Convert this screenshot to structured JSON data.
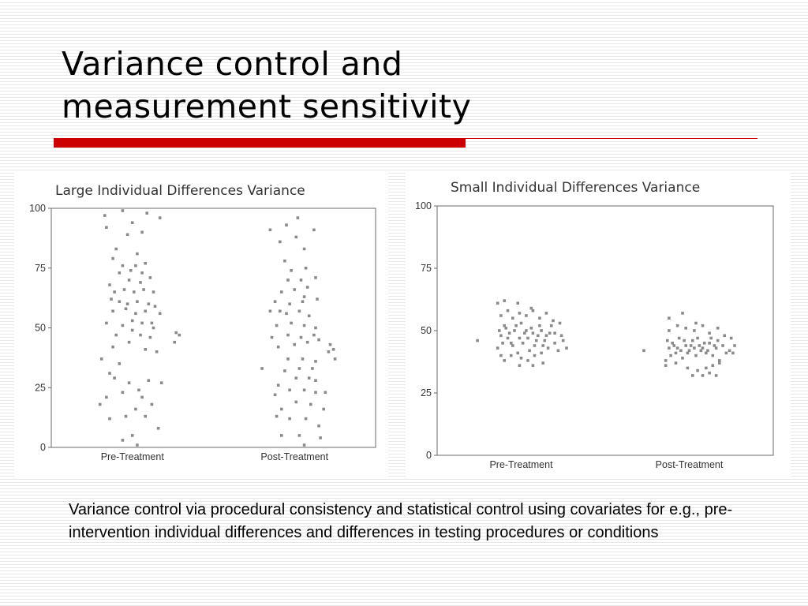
{
  "slide": {
    "title_lines": [
      "Variance control and",
      "measurement sensitivity"
    ],
    "accent_color": "#cc0000",
    "caption": "Variance control via procedural consistency and statistical control using covariates for e.g., pre-intervention individual differences and differences in testing procedures or conditions"
  },
  "chart_data": [
    {
      "type": "scatter",
      "title": "Large Individual Differences Variance",
      "xlabel": "",
      "ylabel": "",
      "categories": [
        "Pre-Treatment",
        "Post-Treatment"
      ],
      "ylim": [
        0,
        100
      ],
      "yticks": [
        0,
        25,
        50,
        75,
        100
      ],
      "grid": false,
      "point_color": "#8a8a8a",
      "series": [
        {
          "values": [
            [
              -0.19,
              37
            ],
            [
              -0.08,
              35
            ],
            [
              -0.14,
              31
            ],
            [
              -0.11,
              29
            ],
            [
              -0.02,
              27
            ],
            [
              0.04,
              24
            ],
            [
              0.1,
              28
            ],
            [
              0.18,
              27
            ],
            [
              -0.16,
              21
            ],
            [
              -0.06,
              23
            ],
            [
              0.06,
              21
            ],
            [
              0.12,
              18
            ],
            [
              -0.2,
              18
            ],
            [
              0.02,
              16
            ],
            [
              -0.14,
              12
            ],
            [
              -0.04,
              13
            ],
            [
              0.08,
              13
            ],
            [
              0.16,
              8
            ],
            [
              0.0,
              5
            ],
            [
              -0.06,
              3
            ],
            [
              0.03,
              1
            ],
            [
              -0.12,
              42
            ],
            [
              -0.02,
              44
            ],
            [
              0.08,
              41
            ],
            [
              0.15,
              40
            ],
            [
              0.26,
              44
            ],
            [
              0.27,
              48
            ],
            [
              0.29,
              47
            ],
            [
              -0.1,
              47
            ],
            [
              0.0,
              49
            ],
            [
              0.05,
              47
            ],
            [
              0.11,
              46
            ],
            [
              -0.16,
              52
            ],
            [
              -0.06,
              51
            ],
            [
              0.0,
              53
            ],
            [
              0.06,
              52
            ],
            [
              0.12,
              52
            ],
            [
              -0.12,
              57
            ],
            [
              -0.04,
              58
            ],
            [
              0.02,
              56
            ],
            [
              0.08,
              57
            ],
            [
              -0.13,
              62
            ],
            [
              -0.08,
              61
            ],
            [
              -0.03,
              60
            ],
            [
              0.03,
              61
            ],
            [
              0.1,
              60
            ],
            [
              -0.11,
              65
            ],
            [
              -0.05,
              66
            ],
            [
              0.01,
              65
            ],
            [
              0.07,
              66
            ],
            [
              0.13,
              65
            ],
            [
              -0.14,
              68
            ],
            [
              -0.02,
              70
            ],
            [
              0.05,
              69
            ],
            [
              -0.08,
              73
            ],
            [
              -0.01,
              74
            ],
            [
              0.06,
              73
            ],
            [
              0.11,
              71
            ],
            [
              -0.06,
              76
            ],
            [
              0.02,
              76
            ],
            [
              0.08,
              77
            ],
            [
              -0.12,
              79
            ],
            [
              0.03,
              81
            ],
            [
              -0.1,
              83
            ],
            [
              -0.03,
              89
            ],
            [
              0.06,
              90
            ],
            [
              -0.16,
              92
            ],
            [
              0.0,
              94
            ],
            [
              -0.17,
              97
            ],
            [
              -0.06,
              99
            ],
            [
              0.09,
              98
            ],
            [
              0.17,
              96
            ],
            [
              0.14,
              59
            ],
            [
              0.17,
              56
            ],
            [
              0.13,
              50
            ]
          ]
        },
        {
          "values": [
            [
              -0.2,
              33
            ],
            [
              -0.1,
              26
            ],
            [
              -0.03,
              24
            ],
            [
              0.06,
              24
            ],
            [
              0.13,
              23
            ],
            [
              0.19,
              23
            ],
            [
              0.01,
              29
            ],
            [
              0.09,
              29
            ],
            [
              0.13,
              28
            ],
            [
              -0.06,
              32
            ],
            [
              0.03,
              33
            ],
            [
              0.11,
              33
            ],
            [
              -0.12,
              22
            ],
            [
              -0.08,
              16
            ],
            [
              0.01,
              19
            ],
            [
              0.1,
              18
            ],
            [
              0.18,
              16
            ],
            [
              -0.11,
              13
            ],
            [
              -0.03,
              12
            ],
            [
              0.07,
              12
            ],
            [
              0.15,
              9
            ],
            [
              -0.08,
              5
            ],
            [
              0.03,
              5
            ],
            [
              0.16,
              4
            ],
            [
              0.06,
              1
            ],
            [
              -0.04,
              37
            ],
            [
              0.05,
              37
            ],
            [
              0.13,
              36
            ],
            [
              -0.1,
              42
            ],
            [
              0.0,
              43
            ],
            [
              0.08,
              44
            ],
            [
              0.15,
              45
            ],
            [
              0.22,
              43
            ],
            [
              0.24,
              41
            ],
            [
              0.21,
              40
            ],
            [
              0.25,
              37
            ],
            [
              -0.14,
              46
            ],
            [
              -0.04,
              47
            ],
            [
              0.04,
              46
            ],
            [
              0.12,
              47
            ],
            [
              -0.11,
              51
            ],
            [
              -0.02,
              52
            ],
            [
              0.06,
              51
            ],
            [
              0.13,
              50
            ],
            [
              -0.15,
              57
            ],
            [
              -0.05,
              56
            ],
            [
              0.03,
              57
            ],
            [
              0.09,
              55
            ],
            [
              -0.12,
              61
            ],
            [
              -0.03,
              60
            ],
            [
              0.05,
              61
            ],
            [
              0.14,
              62
            ],
            [
              -0.08,
              65
            ],
            [
              0.0,
              66
            ],
            [
              0.08,
              67
            ],
            [
              -0.04,
              70
            ],
            [
              0.04,
              70
            ],
            [
              0.13,
              71
            ],
            [
              -0.02,
              74
            ],
            [
              0.07,
              75
            ],
            [
              -0.06,
              78
            ],
            [
              0.06,
              83
            ],
            [
              -0.09,
              86
            ],
            [
              0.01,
              88
            ],
            [
              -0.15,
              91
            ],
            [
              -0.05,
              93
            ],
            [
              0.12,
              91
            ],
            [
              0.02,
              96
            ],
            [
              0.06,
              63
            ],
            [
              -0.09,
              57
            ]
          ]
        }
      ]
    },
    {
      "type": "scatter",
      "title": "Small Individual Differences Variance",
      "xlabel": "",
      "ylabel": "",
      "categories": [
        "Pre-Treatment",
        "Post-Treatment"
      ],
      "ylim": [
        0,
        100
      ],
      "yticks": [
        0,
        25,
        50,
        75,
        100
      ],
      "grid": false,
      "point_color": "#8a8a8a",
      "series": [
        {
          "values": [
            [
              -0.26,
              46
            ],
            [
              -0.14,
              43
            ],
            [
              -0.12,
              48
            ],
            [
              -0.1,
              52
            ],
            [
              -0.08,
              47
            ],
            [
              -0.06,
              45
            ],
            [
              -0.04,
              50
            ],
            [
              -0.02,
              41
            ],
            [
              0.0,
              53
            ],
            [
              0.02,
              49
            ],
            [
              0.04,
              47
            ],
            [
              0.06,
              51
            ],
            [
              0.08,
              44
            ],
            [
              0.1,
              48
            ],
            [
              0.12,
              50
            ],
            [
              0.14,
              46
            ],
            [
              0.16,
              43
            ],
            [
              0.18,
              52
            ],
            [
              0.2,
              45
            ],
            [
              0.22,
              42
            ],
            [
              -0.13,
              50
            ],
            [
              -0.11,
              45
            ],
            [
              -0.09,
              51
            ],
            [
              -0.07,
              49
            ],
            [
              -0.05,
              44
            ],
            [
              -0.03,
              52
            ],
            [
              -0.01,
              47
            ],
            [
              0.01,
              45
            ],
            [
              0.03,
              50
            ],
            [
              0.05,
              42
            ],
            [
              0.07,
              49
            ],
            [
              0.09,
              46
            ],
            [
              0.11,
              52
            ],
            [
              0.13,
              44
            ],
            [
              0.15,
              48
            ],
            [
              0.17,
              49
            ],
            [
              -0.12,
              56
            ],
            [
              -0.08,
              58
            ],
            [
              -0.05,
              55
            ],
            [
              -0.01,
              57
            ],
            [
              0.03,
              56
            ],
            [
              0.07,
              58
            ],
            [
              0.11,
              55
            ],
            [
              0.15,
              57
            ],
            [
              0.19,
              54
            ],
            [
              0.23,
              53
            ],
            [
              -0.14,
              61
            ],
            [
              -0.1,
              62
            ],
            [
              -0.02,
              61
            ],
            [
              0.06,
              59
            ],
            [
              -0.12,
              40
            ],
            [
              -0.06,
              40
            ],
            [
              0.0,
              39
            ],
            [
              0.04,
              38
            ],
            [
              0.08,
              40
            ],
            [
              0.12,
              41
            ],
            [
              -0.01,
              36
            ],
            [
              0.07,
              36
            ],
            [
              0.13,
              37
            ],
            [
              -0.1,
              38
            ],
            [
              0.25,
              46
            ],
            [
              0.27,
              43
            ],
            [
              0.24,
              48
            ],
            [
              0.2,
              49
            ]
          ]
        },
        {
          "values": [
            [
              -0.27,
              42
            ],
            [
              -0.14,
              38
            ],
            [
              -0.12,
              43
            ],
            [
              -0.1,
              45
            ],
            [
              -0.08,
              41
            ],
            [
              -0.06,
              47
            ],
            [
              -0.04,
              39
            ],
            [
              -0.02,
              44
            ],
            [
              0.0,
              42
            ],
            [
              0.02,
              46
            ],
            [
              0.04,
              40
            ],
            [
              0.06,
              44
            ],
            [
              0.08,
              43
            ],
            [
              0.1,
              41
            ],
            [
              0.12,
              45
            ],
            [
              0.14,
              40
            ],
            [
              0.16,
              43
            ],
            [
              0.18,
              38
            ],
            [
              0.2,
              44
            ],
            [
              0.22,
              41
            ],
            [
              -0.13,
              46
            ],
            [
              -0.11,
              40
            ],
            [
              -0.09,
              44
            ],
            [
              -0.07,
              43
            ],
            [
              -0.05,
              42
            ],
            [
              -0.03,
              46
            ],
            [
              -0.01,
              41
            ],
            [
              0.01,
              44
            ],
            [
              0.03,
              43
            ],
            [
              0.05,
              47
            ],
            [
              0.07,
              42
            ],
            [
              0.09,
              45
            ],
            [
              0.11,
              42
            ],
            [
              0.13,
              47
            ],
            [
              0.15,
              44
            ],
            [
              0.17,
              46
            ],
            [
              -0.12,
              50
            ],
            [
              -0.07,
              52
            ],
            [
              -0.02,
              51
            ],
            [
              0.03,
              50
            ],
            [
              0.08,
              52
            ],
            [
              0.12,
              49
            ],
            [
              0.17,
              51
            ],
            [
              0.21,
              48
            ],
            [
              0.25,
              47
            ],
            [
              0.27,
              44
            ],
            [
              0.24,
              42
            ],
            [
              0.26,
              41
            ],
            [
              -0.12,
              55
            ],
            [
              -0.04,
              57
            ],
            [
              0.04,
              53
            ],
            [
              -0.01,
              35
            ],
            [
              0.05,
              34
            ],
            [
              0.1,
              35
            ],
            [
              0.14,
              36
            ],
            [
              0.18,
              37
            ],
            [
              -0.14,
              36
            ],
            [
              -0.08,
              37
            ],
            [
              0.02,
              32
            ],
            [
              0.08,
              32
            ],
            [
              0.12,
              33
            ],
            [
              0.16,
              32
            ]
          ]
        }
      ]
    }
  ]
}
